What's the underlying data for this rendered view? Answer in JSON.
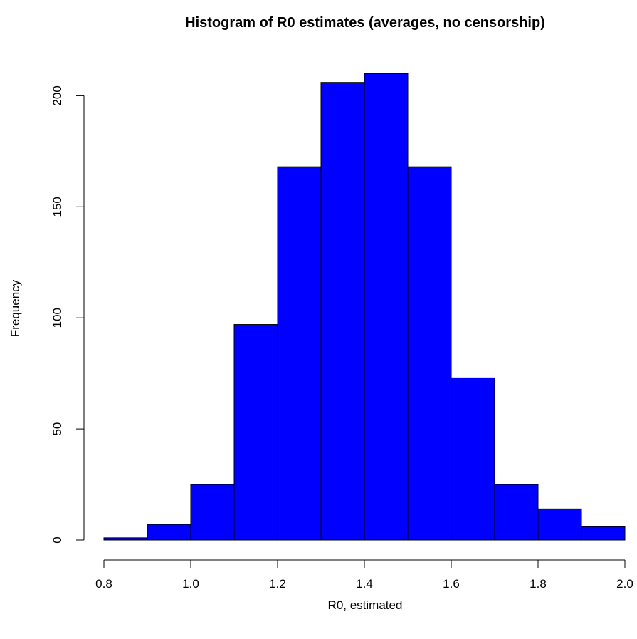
{
  "chart_data": {
    "type": "histogram",
    "title": "Histogram of R0 estimates (averages, no censorship)",
    "xlabel": "R0, estimated",
    "ylabel": "Frequency",
    "bins": [
      {
        "from": 0.8,
        "to": 0.9,
        "count": 1
      },
      {
        "from": 0.9,
        "to": 1.0,
        "count": 7
      },
      {
        "from": 1.0,
        "to": 1.1,
        "count": 25
      },
      {
        "from": 1.1,
        "to": 1.2,
        "count": 97
      },
      {
        "from": 1.2,
        "to": 1.3,
        "count": 168
      },
      {
        "from": 1.3,
        "to": 1.4,
        "count": 206
      },
      {
        "from": 1.4,
        "to": 1.5,
        "count": 210
      },
      {
        "from": 1.5,
        "to": 1.6,
        "count": 168
      },
      {
        "from": 1.6,
        "to": 1.7,
        "count": 73
      },
      {
        "from": 1.7,
        "to": 1.8,
        "count": 25
      },
      {
        "from": 1.8,
        "to": 1.9,
        "count": 14
      },
      {
        "from": 1.9,
        "to": 2.0,
        "count": 6
      }
    ],
    "xlim": [
      0.8,
      2.0
    ],
    "ylim": [
      0,
      210
    ],
    "x_ticks": [
      "0.8",
      "1.0",
      "1.2",
      "1.4",
      "1.6",
      "1.8",
      "2.0"
    ],
    "y_ticks": [
      "0",
      "50",
      "100",
      "150",
      "200"
    ],
    "bar_color": "#0000ff",
    "grid": false
  }
}
